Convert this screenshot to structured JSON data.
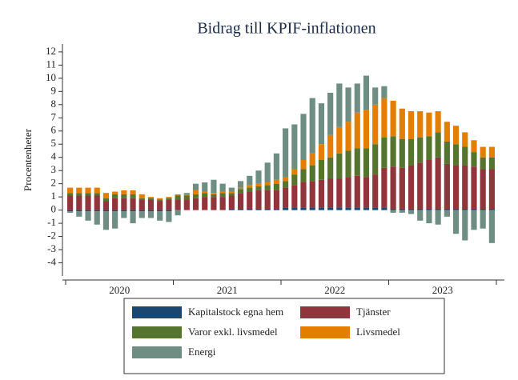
{
  "chart_data": {
    "type": "stacked_bar",
    "title": "Bidrag till KPIF-inflationen",
    "y_label": "Procentenheter",
    "categories": [
      null,
      null,
      null,
      null,
      null,
      null,
      null,
      null,
      null,
      null,
      null,
      null,
      null,
      null,
      null,
      null,
      null,
      null,
      null,
      null,
      null,
      null,
      null,
      null,
      null,
      null,
      null,
      null,
      null,
      null,
      null,
      null,
      null,
      null,
      null,
      null,
      null,
      null,
      null,
      null,
      null,
      null,
      null,
      null,
      null,
      null,
      null,
      null
    ],
    "year_labels": [
      "2020",
      "2021",
      "2022",
      "2023"
    ],
    "ylim": [
      -5,
      12.6
    ],
    "yticks": [
      -4,
      -3,
      -2,
      -1,
      0,
      1,
      2,
      3,
      4,
      5,
      6,
      7,
      8,
      9,
      10,
      11,
      12
    ],
    "series": [
      {
        "name": "Kapitalstock egna hem",
        "color": "#1a476f",
        "values": [
          -0.1,
          -0.1,
          -0.1,
          -0.1,
          -0.1,
          -0.1,
          -0.1,
          -0.1,
          -0.1,
          -0.1,
          -0.1,
          -0.1,
          0,
          0,
          0,
          0,
          0,
          0,
          0.1,
          0.1,
          0.1,
          0.1,
          0.1,
          0.1,
          0.2,
          0.2,
          0.2,
          0.2,
          0.2,
          0.2,
          0.2,
          0.2,
          0.2,
          0.2,
          0.2,
          0.2,
          0.1,
          0.1,
          0.1,
          0.1,
          0.1,
          0.1,
          0.1,
          0.1,
          0.1,
          0.1,
          0.1,
          0.1
        ]
      },
      {
        "name": "Tjänster",
        "color": "#90353b",
        "values": [
          1.1,
          1.1,
          1.1,
          1.1,
          0.7,
          0.9,
          0.9,
          0.9,
          0.8,
          0.8,
          0.7,
          0.8,
          0.8,
          0.8,
          0.9,
          1.0,
          1.0,
          1.0,
          1.0,
          1.2,
          1.3,
          1.4,
          1.4,
          1.4,
          1.5,
          1.7,
          1.9,
          2.0,
          2.1,
          2.2,
          2.2,
          2.3,
          2.4,
          2.3,
          2.5,
          3.0,
          3.2,
          3.1,
          3.3,
          3.5,
          3.7,
          3.9,
          3.4,
          3.3,
          3.3,
          3.2,
          3.0,
          3.0
        ]
      },
      {
        "name": "Varor exkl. livsmedel",
        "color": "#55752f",
        "values": [
          0.2,
          0.2,
          0.2,
          0.2,
          0.2,
          0.3,
          0.3,
          0.3,
          0.1,
          0.1,
          0.1,
          0.1,
          0.3,
          0.3,
          0.3,
          0.3,
          0.2,
          0.3,
          0.2,
          0.3,
          0.3,
          0.3,
          0.4,
          0.5,
          0.5,
          0.8,
          1.0,
          1.2,
          1.5,
          1.6,
          1.9,
          2.0,
          2.1,
          2.2,
          2.3,
          2.3,
          2.3,
          2.2,
          2.0,
          1.9,
          1.8,
          1.9,
          1.7,
          1.6,
          1.4,
          1.1,
          0.9,
          0.9
        ]
      },
      {
        "name": "Livsmedel",
        "color": "#e37e00",
        "values": [
          0.4,
          0.4,
          0.4,
          0.4,
          0.4,
          0.2,
          0.3,
          0.3,
          0.3,
          0.1,
          0.1,
          0.1,
          0.1,
          0.1,
          0.3,
          0.1,
          0.1,
          0.1,
          0.1,
          0.1,
          0.2,
          0.2,
          0.2,
          0.3,
          0.3,
          0.4,
          0.7,
          0.9,
          1.2,
          1.7,
          2.0,
          2.2,
          2.7,
          2.9,
          3.0,
          3.0,
          2.7,
          2.3,
          2.1,
          2.0,
          1.8,
          1.6,
          1.5,
          1.4,
          1.1,
          0.9,
          0.8,
          0.8
        ]
      },
      {
        "name": "Energi",
        "color": "#6e8e84",
        "values": [
          -0.1,
          -0.4,
          -0.7,
          -1.0,
          -1.4,
          -1.3,
          -0.5,
          -0.9,
          -0.5,
          -0.5,
          -0.7,
          -0.8,
          -0.4,
          0.1,
          0.5,
          0.7,
          1.0,
          0.6,
          0.3,
          0.5,
          0.7,
          1.0,
          1.5,
          2.0,
          3.7,
          3.4,
          3.5,
          4.2,
          3.1,
          3.2,
          3.3,
          2.6,
          2.2,
          2.6,
          1.3,
          0.9,
          -0.2,
          -0.2,
          -0.3,
          -0.8,
          -1.0,
          -1.1,
          -0.5,
          -1.8,
          -2.3,
          -1.5,
          -1.4,
          -2.5
        ]
      }
    ]
  }
}
